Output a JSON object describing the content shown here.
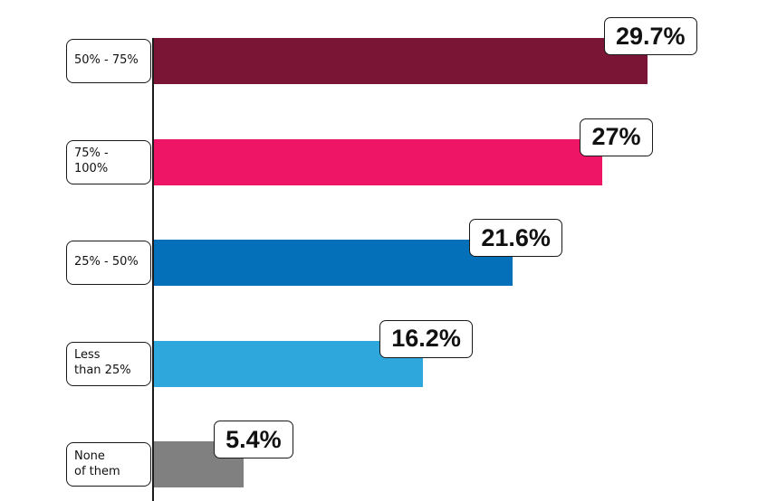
{
  "chart_data": {
    "type": "bar",
    "orientation": "horizontal",
    "categories": [
      "50% - 75%",
      "75% - 100%",
      "25% - 50%",
      "Less\nthan 25%",
      "None\nof them"
    ],
    "values": [
      29.7,
      27,
      21.6,
      16.2,
      5.4
    ],
    "value_labels": [
      "29.7%",
      "27%",
      "21.6%",
      "16.2%",
      "5.4%"
    ],
    "colors": [
      "#7b1535",
      "#ee1466",
      "#0470b9",
      "#2ea7dc",
      "#808080"
    ],
    "title": "",
    "xlabel": "",
    "ylabel": "",
    "xlim": [
      0,
      29.7
    ],
    "grid": false,
    "legend": "none"
  }
}
